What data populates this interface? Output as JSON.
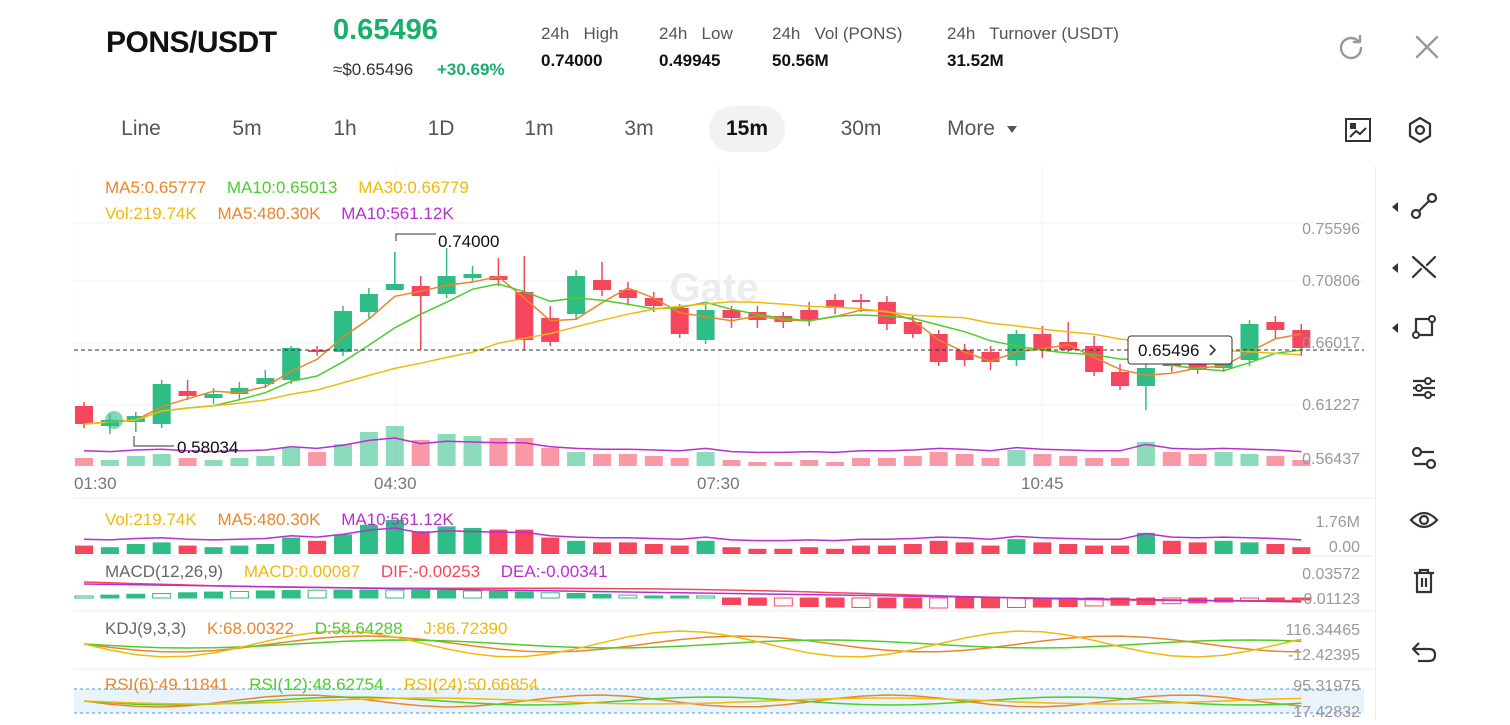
{
  "header": {
    "pair": "PONS/USDT",
    "last_price": "0.65496",
    "fiat_price": "≈$0.65496",
    "change_pct": "+30.69%",
    "stats": [
      {
        "label": "24h   High",
        "value": "0.74000"
      },
      {
        "label": "24h   Low",
        "value": "0.49945"
      },
      {
        "label": "24h   Vol (PONS)",
        "value": "50.56M"
      },
      {
        "label": "24h   Turnover (USDT)",
        "value": "31.52M"
      }
    ]
  },
  "timeframes": [
    "Line",
    "5m",
    "1h",
    "1D",
    "1m",
    "3m",
    "15m",
    "30m",
    "More"
  ],
  "active_timeframe": "15m",
  "legend": {
    "ma5": "MA5:0.65777",
    "ma10": "MA10:0.65013",
    "ma30": "MA30:0.66779",
    "vol": "Vol:219.74K",
    "vol_ma5": "MA5:480.30K",
    "vol_ma10": "MA10:561.12K",
    "macd_name": "MACD(12,26,9)",
    "macd": "MACD:0.00087",
    "dif": "DIF:-0.00253",
    "dea": "DEA:-0.00341",
    "kdj_name": "KDJ(9,3,3)",
    "k": "K:68.00322",
    "d": "D:58.64288",
    "j": "J:86.72390",
    "rsi6": "RSI(6):49.11841",
    "rsi12": "RSI(12):48.62754",
    "rsi24": "RSI(24):50.66854"
  },
  "axis": {
    "price_ticks": [
      "0.75596",
      "0.70806",
      "0.66017",
      "0.61227",
      "0.56437"
    ],
    "time_ticks": [
      "01:30",
      "04:30",
      "07:30",
      "10:45"
    ],
    "vol_ticks": [
      "1.76M",
      "0.00"
    ],
    "macd_ticks": [
      "0.03572",
      "-0.01123"
    ],
    "kdj_ticks": [
      "116.34465",
      "-12.42395"
    ],
    "rsi_ticks": [
      "95.31975",
      "17.42832"
    ]
  },
  "markers": {
    "high_label": "0.74000",
    "low_label": "0.58034",
    "current_price_tag": "0.65496"
  },
  "watermark": "Gate",
  "colors": {
    "up": "#2ebd85",
    "down": "#f6465d",
    "ma5": "#e8862c",
    "ma10": "#4ccd2c",
    "ma30": "#f0b90b",
    "vol_ma10": "#b72fd1"
  },
  "icons": [
    "refresh-icon",
    "close-icon",
    "chart-type-icon",
    "settings-icon",
    "line-tool-icon",
    "crossline-icon",
    "shape-icon",
    "indicator-icon",
    "layers-icon",
    "eye-icon",
    "trash-icon",
    "undo-icon"
  ]
}
